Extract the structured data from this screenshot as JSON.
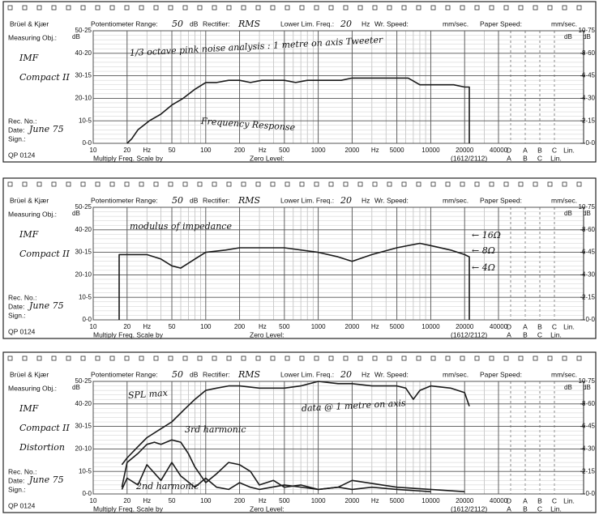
{
  "chart_data": [
    {
      "type": "line",
      "form": {
        "brand": "Brüel & Kjær",
        "potentiometer_range": "Potentiometer Range:",
        "range_value": "50",
        "range_unit": "dB",
        "rectifier": "Rectifier:",
        "rectifier_value": "RMS",
        "lower_lim_freq": "Lower Lim. Freq.:",
        "lower_lim_value": "20",
        "lower_lim_unit": "Hz",
        "wr_speed": "Wr. Speed:",
        "wr_speed_unit": "mm/sec.",
        "paper_speed": "Paper Speed:",
        "paper_speed_unit": "mm/sec.",
        "measuring_obj": "Measuring Obj.:",
        "object_lines": [
          "IMF",
          "Compact II"
        ],
        "rec_no": "Rec. No.:",
        "date": "Date:",
        "date_value": "June 75",
        "sign": "Sign.:",
        "form_no": "QP 0124",
        "multiply": "Multiply Freq. Scale by",
        "zero_level": "Zero Level:",
        "range_code": "(1612/2112)",
        "weighting_top": [
          "D",
          "A",
          "B",
          "C",
          "Lin."
        ],
        "weighting_bottom": [
          "A",
          "B",
          "C",
          "Lin."
        ]
      },
      "annotations": [
        "1/3 octave pink noise analysis : 1 metre on axis Tweeter",
        "Frequency Response"
      ],
      "x_unit": "Hz",
      "y_unit": "dB",
      "y2_unit": "dB",
      "log_x": true,
      "xlim": [
        10,
        40000
      ],
      "xticks": [
        10,
        20,
        50,
        100,
        200,
        500,
        1000,
        2000,
        5000,
        10000,
        20000,
        40000
      ],
      "ylim": [
        0,
        50
      ],
      "yticks": [
        {
          "value": 0,
          "label": "0-0"
        },
        {
          "value": 10,
          "label": "10-5"
        },
        {
          "value": 20,
          "label": "20-10"
        },
        {
          "value": 30,
          "label": "30-15"
        },
        {
          "value": 40,
          "label": "40-20"
        },
        {
          "value": 50,
          "label": "50-25"
        }
      ],
      "y2lim": [
        0,
        10
      ],
      "y2ticks": [
        {
          "value": 0,
          "label": "0-0"
        },
        {
          "value": 2,
          "label": "2-15"
        },
        {
          "value": 4,
          "label": "4-30"
        },
        {
          "value": 6,
          "label": "6-45"
        },
        {
          "value": 8,
          "label": "8-60"
        },
        {
          "value": 10,
          "label": "10-75"
        }
      ],
      "series": [
        {
          "color": "#1a1a1a",
          "x": [
            20,
            22,
            25,
            31.5,
            40,
            50,
            63,
            80,
            100,
            125,
            160,
            200,
            250,
            315,
            400,
            500,
            630,
            800,
            1000,
            1250,
            1600,
            2000,
            2500,
            3150,
            4000,
            5000,
            6300,
            8000,
            10000,
            12500,
            16000,
            20000,
            22000,
            22000
          ],
          "values": [
            0,
            2,
            6,
            10,
            13,
            17,
            20,
            24,
            27,
            27,
            28,
            28,
            27,
            28,
            28,
            28,
            27,
            28,
            28,
            28,
            28,
            29,
            29,
            29,
            29,
            29,
            29,
            26,
            26,
            26,
            26,
            25,
            25,
            0
          ]
        }
      ]
    },
    {
      "type": "line",
      "form": {
        "brand": "Brüel & Kjær",
        "potentiometer_range": "Potentiometer Range:",
        "range_value": "50",
        "range_unit": "dB",
        "rectifier": "Rectifier:",
        "rectifier_value": "RMS",
        "lower_lim_freq": "Lower Lim. Freq.:",
        "lower_lim_value": "20",
        "lower_lim_unit": "Hz",
        "wr_speed": "Wr. Speed:",
        "wr_speed_unit": "mm/sec.",
        "paper_speed": "Paper Speed:",
        "paper_speed_unit": "mm/sec.",
        "measuring_obj": "Measuring Obj.:",
        "object_lines": [
          "IMF",
          "Compact II"
        ],
        "rec_no": "Rec. No.:",
        "date": "Date:",
        "date_value": "June 75",
        "sign": "Sign.:",
        "form_no": "QP 0124",
        "multiply": "Multiply Freq. Scale by",
        "zero_level": "Zero Level:",
        "range_code": "(1612/2112)",
        "weighting_top": [
          "D",
          "A",
          "B",
          "C",
          "Lin."
        ],
        "weighting_bottom": [
          "A",
          "B",
          "C",
          "Lin."
        ]
      },
      "annotations": [
        "modulus of impedance",
        "← 16Ω",
        "← 8Ω",
        "← 4Ω"
      ],
      "x_unit": "Hz",
      "y_unit": "dB",
      "y2_unit": "dB",
      "log_x": true,
      "xlim": [
        10,
        40000
      ],
      "xticks": [
        10,
        20,
        50,
        100,
        200,
        500,
        1000,
        2000,
        5000,
        10000,
        20000,
        40000
      ],
      "ylim": [
        0,
        50
      ],
      "yticks": [
        {
          "value": 0,
          "label": "0-0"
        },
        {
          "value": 10,
          "label": "10-5"
        },
        {
          "value": 20,
          "label": "20-10"
        },
        {
          "value": 30,
          "label": "30-15"
        },
        {
          "value": 40,
          "label": "40-20"
        },
        {
          "value": 50,
          "label": "50-25"
        }
      ],
      "y2lim": [
        0,
        10
      ],
      "y2ticks": [
        {
          "value": 0,
          "label": "0-0"
        },
        {
          "value": 2,
          "label": "2-15"
        },
        {
          "value": 4,
          "label": "4-30"
        },
        {
          "value": 6,
          "label": "6-45"
        },
        {
          "value": 8,
          "label": "8-60"
        },
        {
          "value": 10,
          "label": "10-75"
        }
      ],
      "series": [
        {
          "color": "#1a1a1a",
          "x": [
            17,
            17,
            20,
            30,
            40,
            50,
            60,
            80,
            100,
            150,
            200,
            500,
            1000,
            1500,
            2000,
            3000,
            5000,
            8000,
            10000,
            15000,
            20000,
            22000,
            22000
          ],
          "values": [
            0,
            29,
            29,
            29,
            27,
            24,
            23,
            27,
            30,
            31,
            32,
            32,
            30,
            28,
            26,
            29,
            32,
            34,
            33,
            31,
            29,
            28,
            0
          ]
        }
      ]
    },
    {
      "type": "line",
      "form": {
        "brand": "Brüel & Kjær",
        "potentiometer_range": "Potentiometer Range:",
        "range_value": "50",
        "range_unit": "dB",
        "rectifier": "Rectifier:",
        "rectifier_value": "RMS",
        "lower_lim_freq": "Lower Lim. Freq.:",
        "lower_lim_value": "20",
        "lower_lim_unit": "Hz",
        "wr_speed": "Wr. Speed:",
        "wr_speed_unit": "mm/sec.",
        "paper_speed": "Paper Speed:",
        "paper_speed_unit": "mm/sec.",
        "measuring_obj": "Measuring Obj.:",
        "object_lines": [
          "IMF",
          "Compact II",
          "Distortion"
        ],
        "rec_no": "Rec. No.:",
        "date": "Date:",
        "date_value": "June 75",
        "sign": "Sign.:",
        "form_no": "QP 0124",
        "multiply": "Multiply Freq. Scale by",
        "zero_level": "Zero Level:",
        "range_code": "(1612/2112)",
        "weighting_top": [
          "D",
          "A",
          "B",
          "C",
          "Lin."
        ],
        "weighting_bottom": [
          "A",
          "B",
          "C",
          "Lin."
        ]
      },
      "annotations": [
        "SPL max",
        "3rd harmonic",
        "2nd harmonic",
        "data @ 1 metre on axis"
      ],
      "x_unit": "Hz",
      "y_unit": "dB",
      "y2_unit": "dB",
      "log_x": true,
      "xlim": [
        10,
        40000
      ],
      "xticks": [
        10,
        20,
        50,
        100,
        200,
        500,
        1000,
        2000,
        5000,
        10000,
        20000,
        40000
      ],
      "ylim": [
        0,
        50
      ],
      "yticks": [
        {
          "value": 0,
          "label": "0-0"
        },
        {
          "value": 10,
          "label": "10-5"
        },
        {
          "value": 20,
          "label": "20-10"
        },
        {
          "value": 30,
          "label": "30-15"
        },
        {
          "value": 40,
          "label": "40-20"
        },
        {
          "value": 50,
          "label": "50-25"
        }
      ],
      "y2lim": [
        0,
        10
      ],
      "y2ticks": [
        {
          "value": 0,
          "label": "0-0"
        },
        {
          "value": 2,
          "label": "2-15"
        },
        {
          "value": 4,
          "label": "4-30"
        },
        {
          "value": 6,
          "label": "6-45"
        },
        {
          "value": 8,
          "label": "8-60"
        },
        {
          "value": 10,
          "label": "10-75"
        }
      ],
      "series": [
        {
          "color": "#1a1a1a",
          "x": [
            18,
            20,
            25,
            30,
            40,
            50,
            63,
            80,
            100,
            125,
            160,
            200,
            300,
            500,
            700,
            1000,
            1500,
            2000,
            3000,
            5000,
            6000,
            7000,
            8000,
            10000,
            15000,
            20000,
            22000
          ],
          "values": [
            13,
            16,
            21,
            25,
            29,
            32,
            37,
            42,
            46,
            47,
            48,
            48,
            47,
            47,
            48,
            50,
            49,
            49,
            48,
            48,
            47,
            42,
            46,
            48,
            47,
            45,
            39
          ]
        },
        {
          "color": "#1a1a1a",
          "x": [
            18,
            20,
            25,
            30,
            35,
            40,
            50,
            60,
            70,
            80,
            100,
            125,
            160,
            200,
            250,
            300,
            400,
            500,
            700,
            1000,
            1500,
            2000,
            3000,
            5000,
            10000
          ],
          "values": [
            3,
            14,
            18,
            22,
            23,
            22,
            24,
            23,
            18,
            12,
            5,
            9,
            14,
            13,
            10,
            4,
            6,
            3,
            4,
            2,
            3,
            2,
            3,
            2,
            1
          ]
        },
        {
          "color": "#1a1a1a",
          "x": [
            18,
            20,
            25,
            30,
            40,
            50,
            60,
            80,
            100,
            125,
            160,
            200,
            250,
            300,
            500,
            1000,
            1500,
            2000,
            5000,
            10000,
            20000
          ],
          "values": [
            2,
            7,
            4,
            13,
            6,
            14,
            8,
            3,
            7,
            3,
            2,
            5,
            3,
            2,
            4,
            2,
            3,
            6,
            3,
            2,
            1
          ]
        }
      ]
    }
  ]
}
